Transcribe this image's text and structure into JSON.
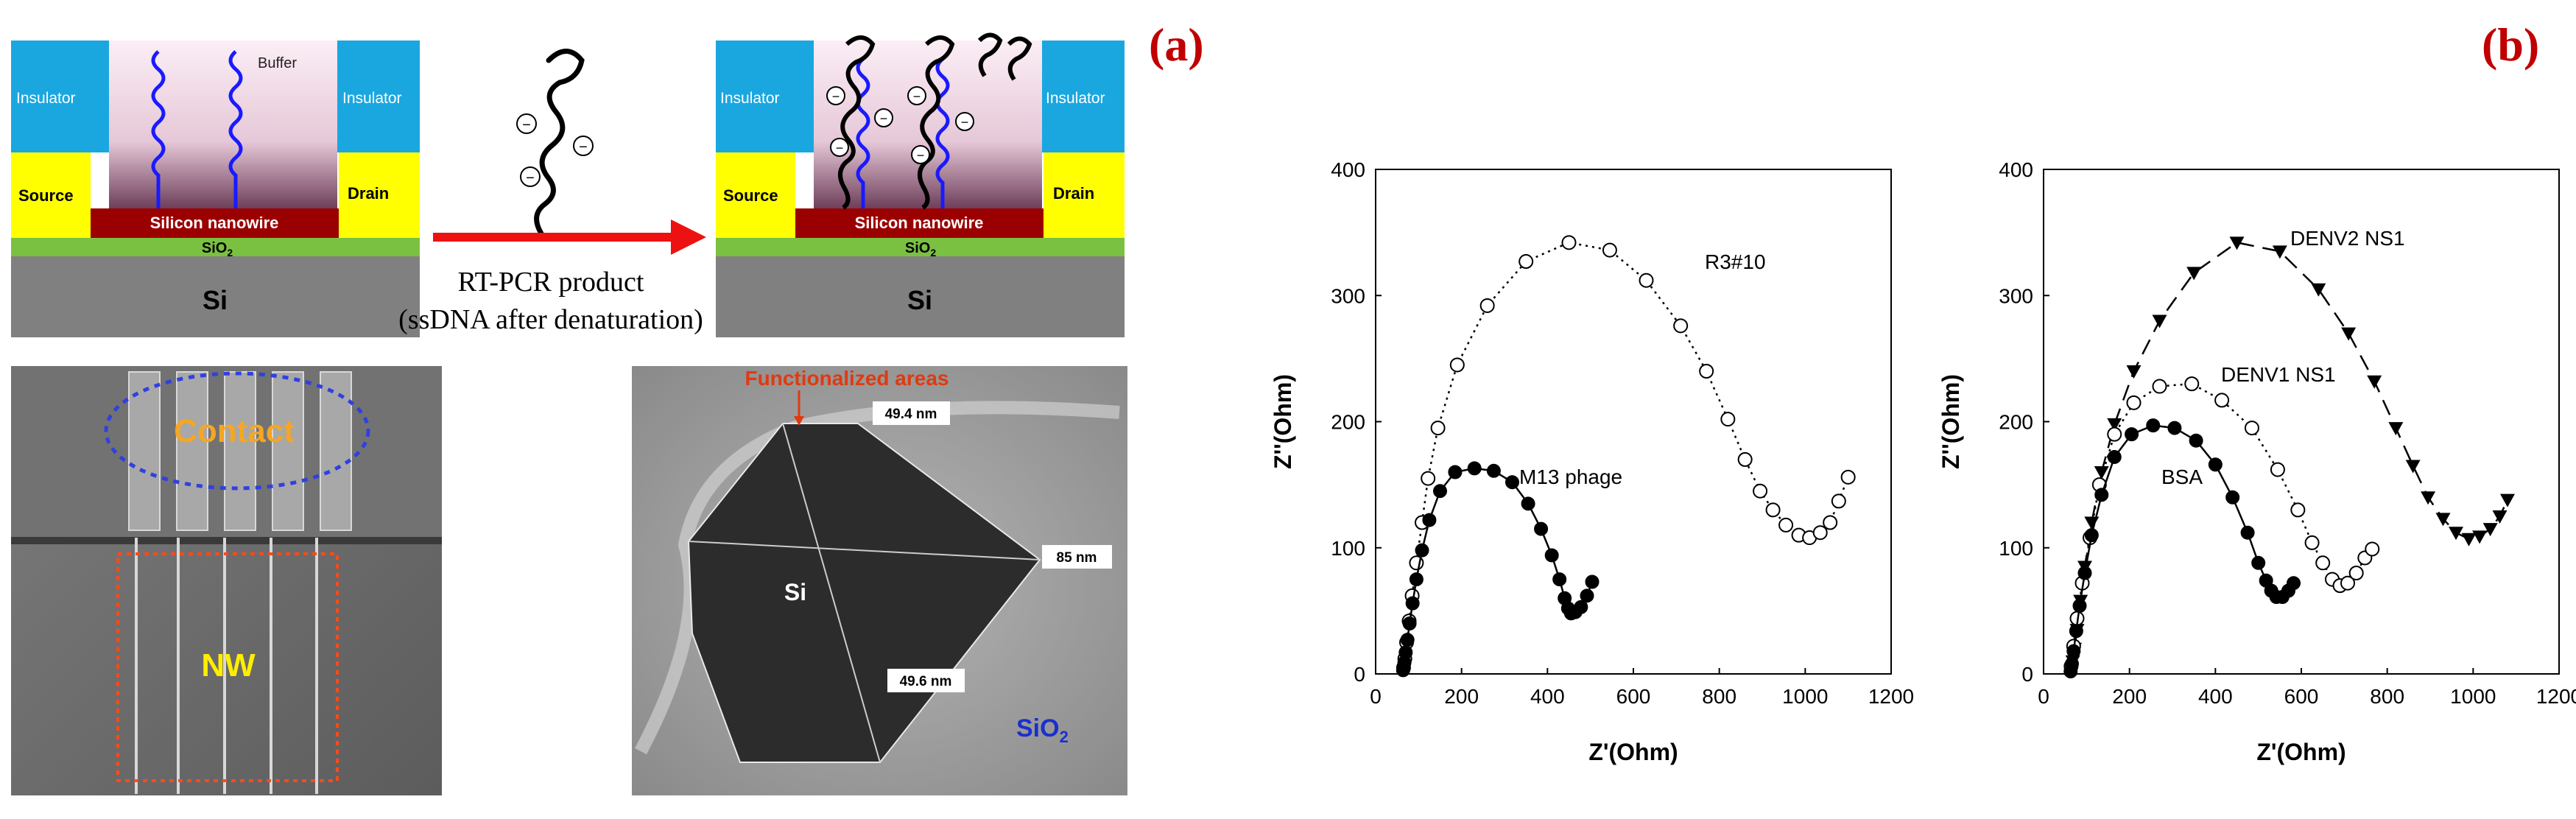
{
  "panel_labels": {
    "a": "(a)",
    "b": "(b)"
  },
  "schematic": {
    "insulator": "Insulator",
    "buffer": "Buffer",
    "source": "Source",
    "drain": "Drain",
    "nanowire": "Silicon nanowire",
    "sio2": "SiO",
    "sio2_sub": "2",
    "si": "Si",
    "arrow_line1": "RT-PCR product",
    "arrow_line2": "(ssDNA after denaturation)",
    "charge_symbol": "−"
  },
  "sem": {
    "contact": "Contact",
    "nw": "NW"
  },
  "tem": {
    "functionalized": "Functionalized areas",
    "width_top": "49.4 nm",
    "width_bottom": "49.6 nm",
    "height": "85 nm",
    "si": "Si",
    "sio2": "SiO",
    "sio2_sub": "2"
  },
  "colors": {
    "panel_label": "#c00000",
    "insulator": "#1aa7e0",
    "source_drain": "#ffff00",
    "nanowire": "#9b0000",
    "sio2": "#7ac142",
    "si": "#808080",
    "dna": "#1a1aff",
    "arrow": "#ee1111",
    "contact_text": "#f5a623",
    "nw_text": "#ffee00",
    "functional_text": "#e03a10",
    "tem_sio2": "#1a2fd0"
  },
  "chart_data": [
    {
      "type": "scatter",
      "title": "",
      "xlabel": "Z'(Ohm)",
      "ylabel": "Z''(Ohm)",
      "xlim": [
        0,
        1200
      ],
      "ylim": [
        0,
        400
      ],
      "xticks": [
        "0",
        "200",
        "400",
        "600",
        "800",
        "1000",
        "1200"
      ],
      "yticks": [
        "0",
        "100",
        "200",
        "300",
        "400"
      ],
      "series": [
        {
          "name": "R3#10",
          "marker": "open-circle",
          "line": "dotted",
          "points": [
            [
              65,
              5
            ],
            [
              68,
              12
            ],
            [
              72,
              25
            ],
            [
              78,
              42
            ],
            [
              85,
              62
            ],
            [
              95,
              88
            ],
            [
              108,
              120
            ],
            [
              122,
              155
            ],
            [
              145,
              195
            ],
            [
              190,
              245
            ],
            [
              260,
              292
            ],
            [
              350,
              327
            ],
            [
              450,
              342
            ],
            [
              545,
              336
            ],
            [
              630,
              312
            ],
            [
              710,
              276
            ],
            [
              770,
              240
            ],
            [
              820,
              202
            ],
            [
              860,
              170
            ],
            [
              895,
              145
            ],
            [
              925,
              130
            ],
            [
              955,
              118
            ],
            [
              985,
              110
            ],
            [
              1010,
              108
            ],
            [
              1035,
              112
            ],
            [
              1058,
              120
            ],
            [
              1078,
              137
            ],
            [
              1100,
              156
            ]
          ]
        },
        {
          "name": "M13 phage",
          "marker": "filled-circle",
          "line": "solid",
          "points": [
            [
              64,
              3
            ],
            [
              67,
              9
            ],
            [
              70,
              17
            ],
            [
              74,
              27
            ],
            [
              79,
              40
            ],
            [
              86,
              56
            ],
            [
              95,
              75
            ],
            [
              108,
              98
            ],
            [
              125,
              122
            ],
            [
              150,
              145
            ],
            [
              185,
              160
            ],
            [
              230,
              163
            ],
            [
              275,
              161
            ],
            [
              318,
              152
            ],
            [
              355,
              135
            ],
            [
              385,
              115
            ],
            [
              410,
              94
            ],
            [
              428,
              75
            ],
            [
              440,
              60
            ],
            [
              448,
              52
            ],
            [
              455,
              48
            ],
            [
              465,
              49
            ],
            [
              478,
              53
            ],
            [
              492,
              62
            ],
            [
              504,
              73
            ]
          ]
        }
      ]
    },
    {
      "type": "scatter",
      "title": "",
      "xlabel": "Z'(Ohm)",
      "ylabel": "Z''(Ohm)",
      "xlim": [
        0,
        1200
      ],
      "ylim": [
        0,
        400
      ],
      "xticks": [
        "0",
        "200",
        "400",
        "600",
        "800",
        "1000",
        "1200"
      ],
      "yticks": [
        "0",
        "100",
        "200",
        "300",
        "400"
      ],
      "series": [
        {
          "name": "DENV2 NS1",
          "marker": "filled-triangle-down",
          "line": "dashed",
          "points": [
            [
              65,
              3
            ],
            [
              68,
              10
            ],
            [
              72,
              20
            ],
            [
              78,
              35
            ],
            [
              86,
              58
            ],
            [
              96,
              85
            ],
            [
              112,
              120
            ],
            [
              135,
              160
            ],
            [
              165,
              198
            ],
            [
              210,
              240
            ],
            [
              270,
              280
            ],
            [
              350,
              318
            ],
            [
              450,
              342
            ],
            [
              550,
              335
            ],
            [
              640,
              305
            ],
            [
              710,
              270
            ],
            [
              770,
              232
            ],
            [
              820,
              195
            ],
            [
              860,
              165
            ],
            [
              895,
              140
            ],
            [
              930,
              123
            ],
            [
              960,
              112
            ],
            [
              990,
              107
            ],
            [
              1015,
              109
            ],
            [
              1040,
              115
            ],
            [
              1062,
              125
            ],
            [
              1080,
              138
            ]
          ]
        },
        {
          "name": "DENV1 NS1",
          "marker": "open-circle",
          "line": "dotted",
          "points": [
            [
              64,
              6
            ],
            [
              70,
              22
            ],
            [
              78,
              44
            ],
            [
              90,
              72
            ],
            [
              108,
              108
            ],
            [
              130,
              150
            ],
            [
              165,
              190
            ],
            [
              210,
              215
            ],
            [
              270,
              228
            ],
            [
              345,
              230
            ],
            [
              415,
              217
            ],
            [
              485,
              195
            ],
            [
              545,
              162
            ],
            [
              592,
              130
            ],
            [
              625,
              104
            ],
            [
              650,
              88
            ],
            [
              672,
              75
            ],
            [
              690,
              70
            ],
            [
              708,
              72
            ],
            [
              728,
              80
            ],
            [
              748,
              92
            ],
            [
              765,
              99
            ]
          ]
        },
        {
          "name": "BSA",
          "marker": "filled-circle",
          "line": "solid",
          "points": [
            [
              63,
              2
            ],
            [
              66,
              8
            ],
            [
              70,
              18
            ],
            [
              76,
              34
            ],
            [
              84,
              54
            ],
            [
              96,
              80
            ],
            [
              112,
              110
            ],
            [
              135,
              142
            ],
            [
              165,
              172
            ],
            [
              205,
              190
            ],
            [
              255,
              197
            ],
            [
              305,
              195
            ],
            [
              355,
              185
            ],
            [
              400,
              166
            ],
            [
              440,
              140
            ],
            [
              475,
              112
            ],
            [
              500,
              88
            ],
            [
              518,
              74
            ],
            [
              530,
              66
            ],
            [
              542,
              61
            ],
            [
              556,
              61
            ],
            [
              570,
              66
            ],
            [
              582,
              72
            ]
          ]
        }
      ]
    }
  ]
}
